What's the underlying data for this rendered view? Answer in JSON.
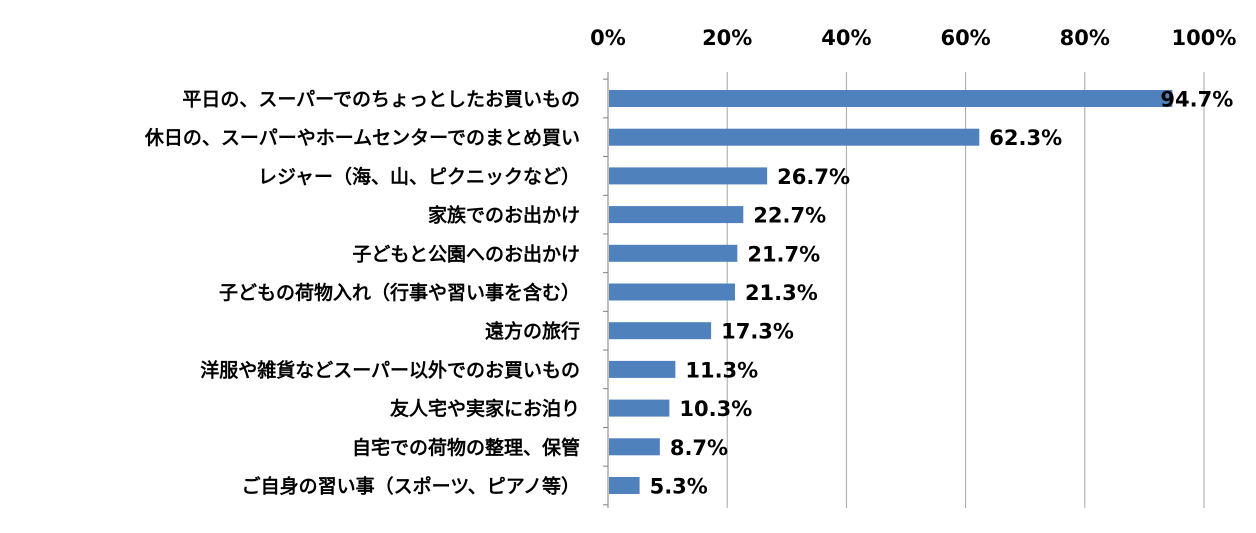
{
  "chart_data": {
    "type": "bar",
    "orientation": "horizontal",
    "categories": [
      "平日の、スーパーでのちょっとしたお買いもの",
      "休日の、スーパーやホームセンターでのまとめ買い",
      "レジャー（海、山、ピクニックなど）",
      "家族でのお出かけ",
      "子どもと公園へのお出かけ",
      "子どもの荷物入れ（行事や習い事を含む）",
      "遠方の旅行",
      "洋服や雑貨などスーパー以外でのお買いもの",
      "友人宅や実家にお泊り",
      "自宅での荷物の整理、保管",
      "ご自身の習い事（スポーツ、ピアノ等）"
    ],
    "values": [
      94.7,
      62.3,
      26.7,
      22.7,
      21.7,
      21.3,
      17.3,
      11.3,
      10.3,
      8.7,
      5.3
    ],
    "data_labels": [
      "94.7%",
      "62.3%",
      "26.7%",
      "22.7%",
      "21.7%",
      "21.3%",
      "17.3%",
      "11.3%",
      "10.3%",
      "8.7%",
      "5.3%"
    ],
    "x_ticks": [
      "0%",
      "20%",
      "40%",
      "60%",
      "80%",
      "100%"
    ],
    "x_tick_values": [
      0,
      20,
      40,
      60,
      80,
      100
    ],
    "xlim": [
      0,
      100
    ],
    "x_axis_position": "top",
    "grid": true,
    "legend": "none",
    "bar_color": "#4F81BD",
    "grid_color": "#A6A6A6"
  }
}
